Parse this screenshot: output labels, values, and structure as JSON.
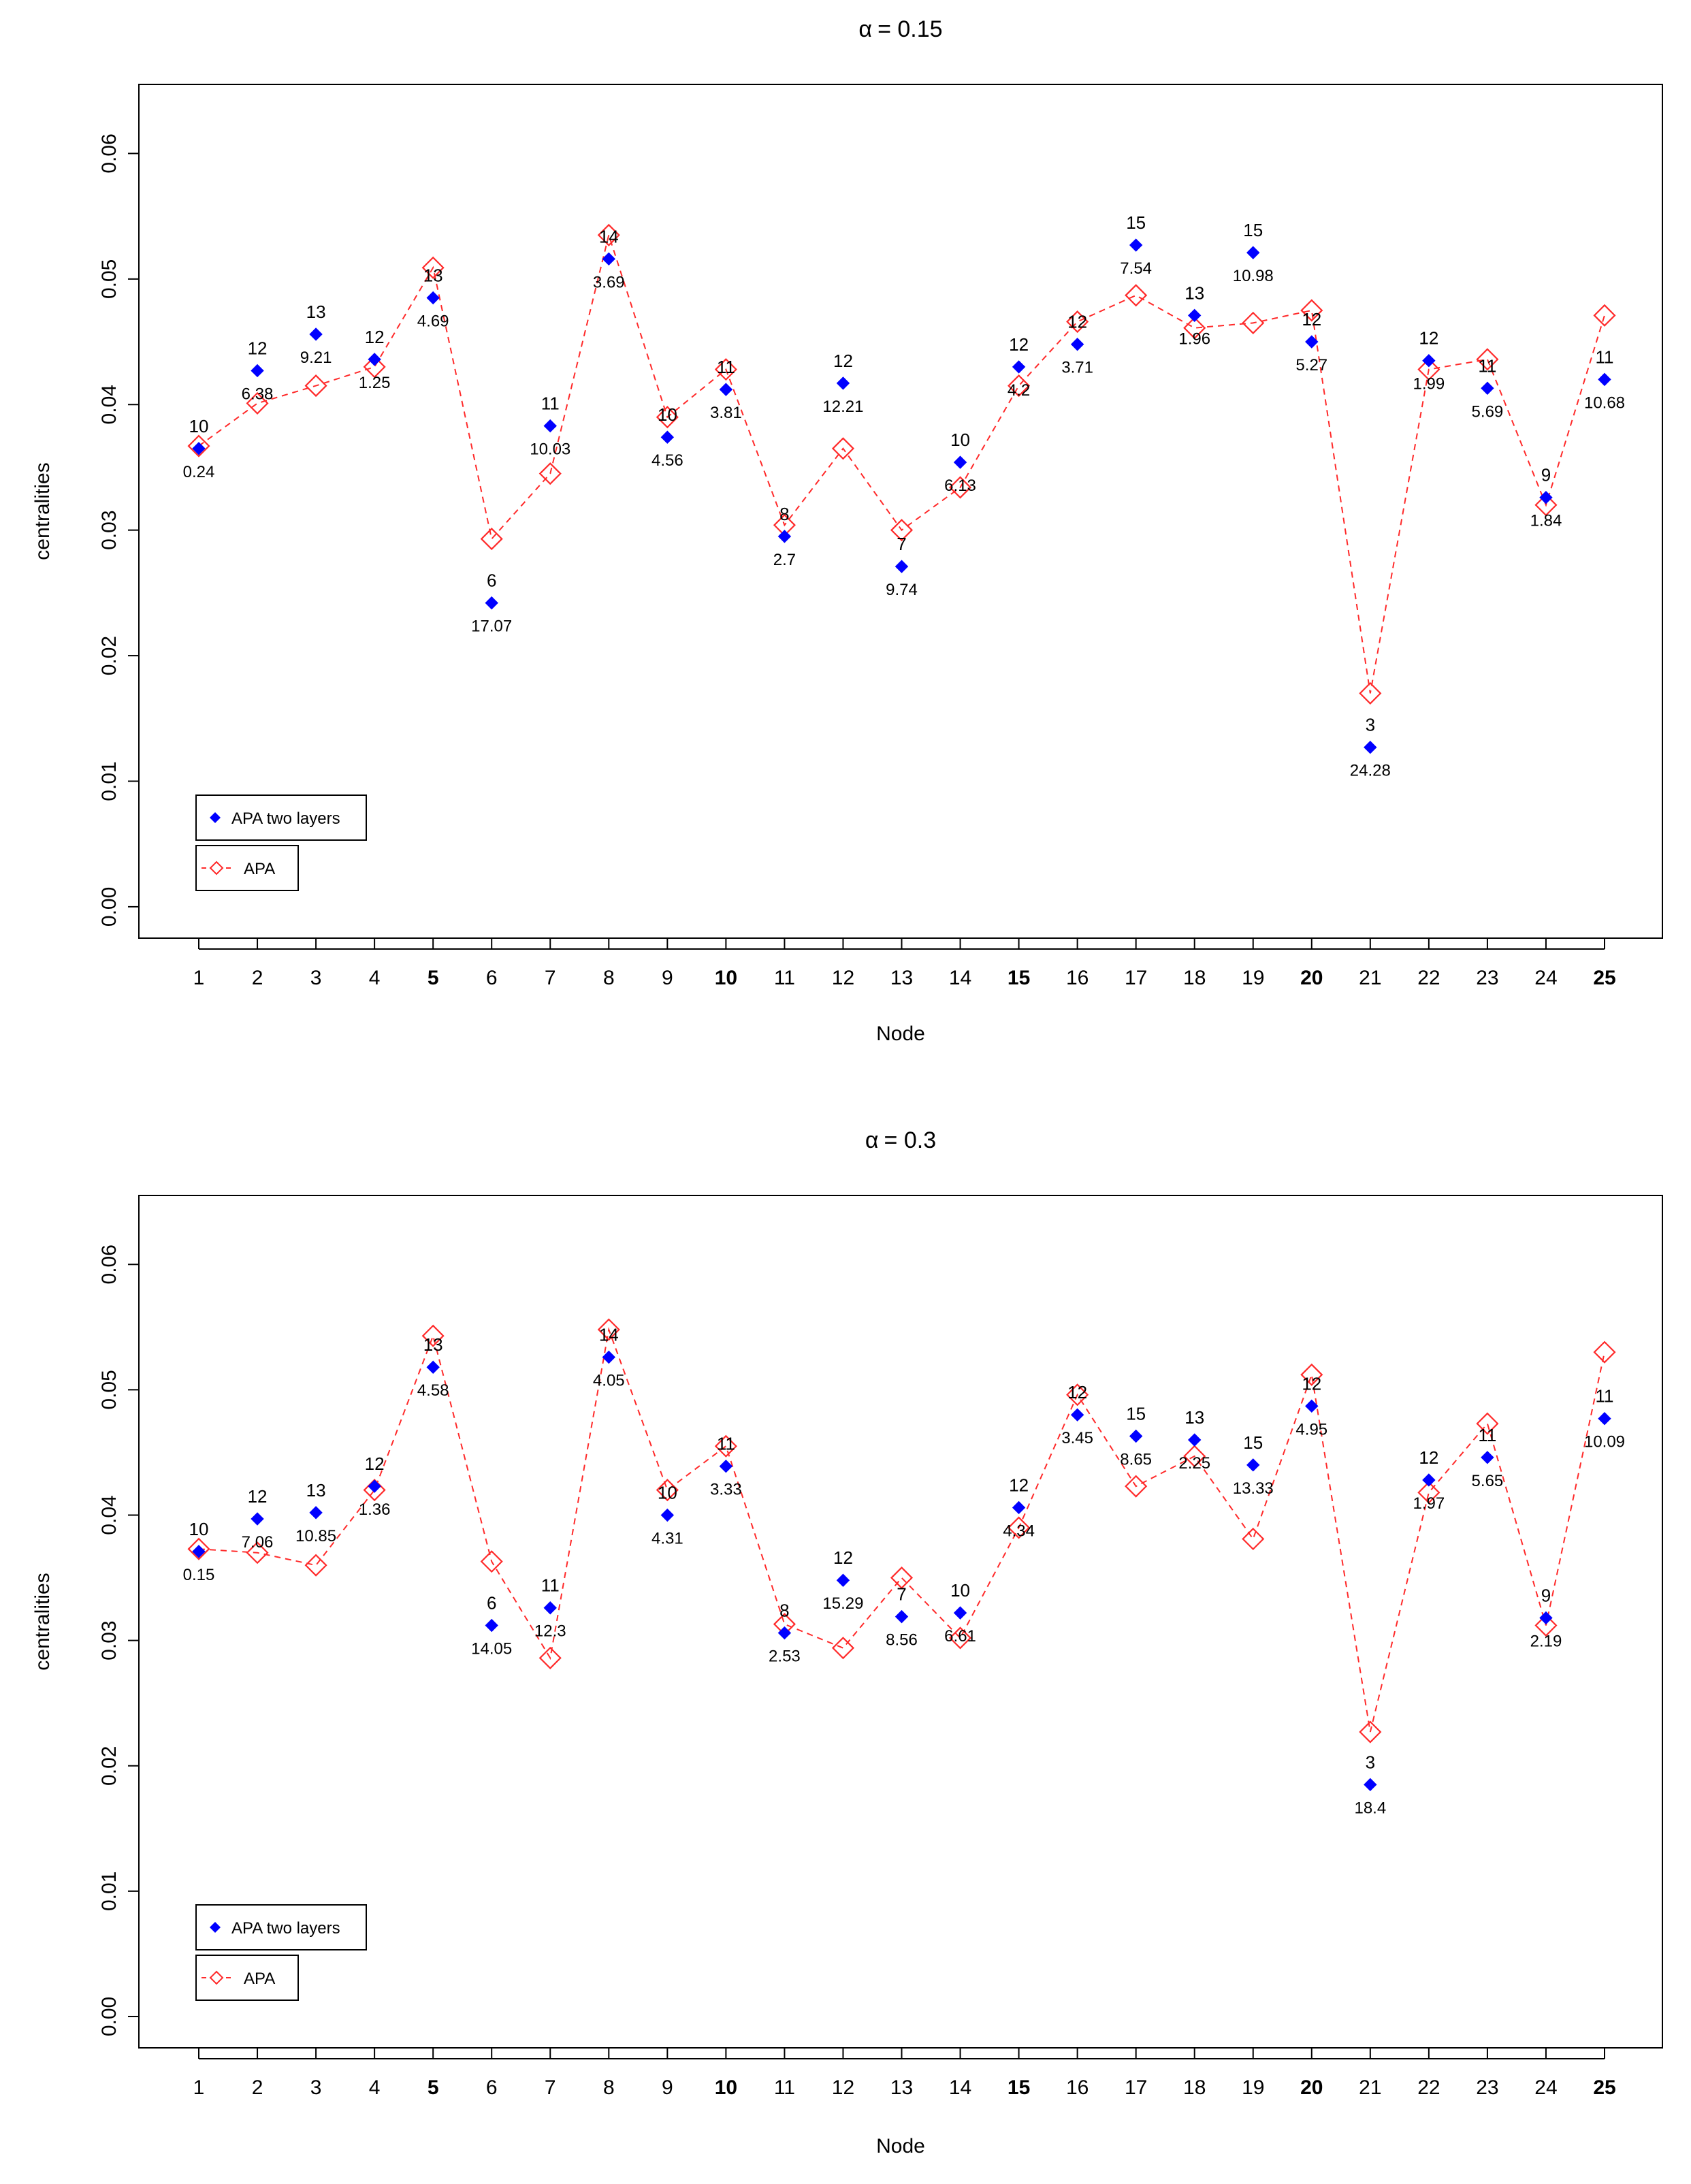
{
  "colors": {
    "series_two_layers": "#0000ff",
    "series_apa": "#ff2a2a",
    "axis": "#000000"
  },
  "chart_data": [
    {
      "type": "line",
      "title_prefix": "α",
      "title": "= 0.15",
      "xlabel": "Node",
      "ylabel": "centralities",
      "ylim": [
        -0.0025,
        0.0655
      ],
      "y_ticks": [
        "0.00",
        "0.01",
        "0.02",
        "0.03",
        "0.04",
        "0.05",
        "0.06"
      ],
      "y_tick_values": [
        0,
        0.01,
        0.02,
        0.03,
        0.04,
        0.05,
        0.06
      ],
      "categories": [
        "1",
        "2",
        "3",
        "4",
        "5",
        "6",
        "7",
        "8",
        "9",
        "10",
        "11",
        "12",
        "13",
        "14",
        "15",
        "16",
        "17",
        "18",
        "19",
        "20",
        "21",
        "22",
        "23",
        "24",
        "25"
      ],
      "bold_categories": [
        "5",
        "10",
        "15",
        "20",
        "25"
      ],
      "legend": [
        "APA two layers",
        "APA"
      ],
      "series": [
        {
          "name": "APA two layers",
          "marker": "filled-diamond",
          "values": [
            0.0365,
            0.0427,
            0.0456,
            0.0436,
            0.0485,
            0.0242,
            0.0383,
            0.0516,
            0.0374,
            0.0412,
            0.0295,
            0.0417,
            0.0271,
            0.0354,
            0.043,
            0.0448,
            0.0527,
            0.0471,
            0.0521,
            0.045,
            0.0127,
            0.0435,
            0.0413,
            0.0326,
            0.042
          ],
          "top_labels": [
            "10",
            "12",
            "13",
            "12",
            "13",
            "6",
            "11",
            "14",
            "10",
            "11",
            "8",
            "12",
            "7",
            "10",
            "12",
            "12",
            "15",
            "13",
            "15",
            "12",
            "3",
            "12",
            "11",
            "9",
            "11"
          ],
          "bottom_labels": [
            "0.24",
            "6.38",
            "9.21",
            "1.25",
            "4.69",
            "17.07",
            "10.03",
            "3.69",
            "4.56",
            "3.81",
            "2.7",
            "12.21",
            "9.74",
            "6.13",
            "4.2",
            "3.71",
            "7.54",
            "1.96",
            "10.98",
            "5.27",
            "24.28",
            "1.99",
            "5.69",
            "1.84",
            "10.68"
          ]
        },
        {
          "name": "APA",
          "marker": "open-diamond",
          "line": "dashed",
          "values": [
            0.0367,
            0.0401,
            0.0415,
            0.043,
            0.0509,
            0.0293,
            0.0345,
            0.0535,
            0.039,
            0.0428,
            0.0304,
            0.0365,
            0.03,
            0.0334,
            0.0415,
            0.0466,
            0.0487,
            0.0461,
            0.0465,
            0.0475,
            0.017,
            0.0428,
            0.0436,
            0.032,
            0.0471
          ]
        }
      ]
    },
    {
      "type": "line",
      "title_prefix": "α",
      "title": "= 0.3",
      "xlabel": "Node",
      "ylabel": "centralities",
      "ylim": [
        -0.0025,
        0.0655
      ],
      "y_ticks": [
        "0.00",
        "0.01",
        "0.02",
        "0.03",
        "0.04",
        "0.05",
        "0.06"
      ],
      "y_tick_values": [
        0,
        0.01,
        0.02,
        0.03,
        0.04,
        0.05,
        0.06
      ],
      "categories": [
        "1",
        "2",
        "3",
        "4",
        "5",
        "6",
        "7",
        "8",
        "9",
        "10",
        "11",
        "12",
        "13",
        "14",
        "15",
        "16",
        "17",
        "18",
        "19",
        "20",
        "21",
        "22",
        "23",
        "24",
        "25"
      ],
      "bold_categories": [
        "5",
        "10",
        "15",
        "20",
        "25"
      ],
      "legend": [
        "APA two layers",
        "APA"
      ],
      "series": [
        {
          "name": "APA two layers",
          "marker": "filled-diamond",
          "values": [
            0.0371,
            0.0397,
            0.0402,
            0.0423,
            0.0518,
            0.0312,
            0.0326,
            0.0526,
            0.04,
            0.0439,
            0.0306,
            0.0348,
            0.0319,
            0.0322,
            0.0406,
            0.048,
            0.0463,
            0.046,
            0.044,
            0.0487,
            0.0185,
            0.0428,
            0.0446,
            0.0318,
            0.0477
          ],
          "top_labels": [
            "10",
            "12",
            "13",
            "12",
            "13",
            "6",
            "11",
            "14",
            "10",
            "11",
            "8",
            "12",
            "7",
            "10",
            "12",
            "12",
            "15",
            "13",
            "15",
            "12",
            "3",
            "12",
            "11",
            "9",
            "11"
          ],
          "bottom_labels": [
            "0.15",
            "7.06",
            "10.85",
            "1.36",
            "4.58",
            "14.05",
            "12.3",
            "4.05",
            "4.31",
            "3.33",
            "2.53",
            "15.29",
            "8.56",
            "6.61",
            "4.34",
            "3.45",
            "8.65",
            "2.25",
            "13.33",
            "4.95",
            "18.4",
            "1.97",
            "5.65",
            "2.19",
            "10.09"
          ]
        },
        {
          "name": "APA",
          "marker": "open-diamond",
          "line": "dashed",
          "values": [
            0.0373,
            0.037,
            0.036,
            0.042,
            0.0543,
            0.0363,
            0.0286,
            0.0548,
            0.042,
            0.0455,
            0.0313,
            0.0294,
            0.035,
            0.0302,
            0.039,
            0.0496,
            0.0423,
            0.0447,
            0.0381,
            0.0512,
            0.0227,
            0.0418,
            0.0473,
            0.0312,
            0.053
          ]
        }
      ]
    }
  ]
}
